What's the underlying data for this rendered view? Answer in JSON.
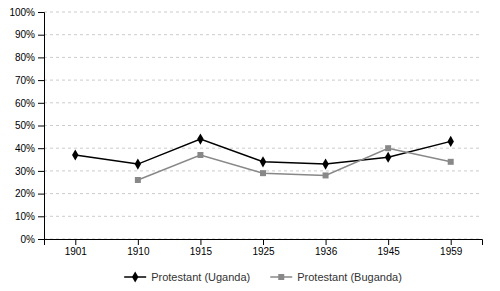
{
  "chart_data": {
    "type": "line",
    "categories": [
      "1901",
      "1910",
      "1915",
      "1925",
      "1936",
      "1945",
      "1959"
    ],
    "series": [
      {
        "name": "Protestant (Uganda)",
        "color": "#000000",
        "marker": "diamond",
        "values": [
          0.37,
          0.33,
          0.44,
          0.34,
          0.33,
          0.36,
          0.43
        ]
      },
      {
        "name": "Protestant (Buganda)",
        "color": "#888888",
        "marker": "square",
        "values": [
          null,
          0.26,
          0.37,
          0.29,
          0.28,
          0.4,
          0.34
        ]
      }
    ],
    "ylim": [
      0.0,
      1.0
    ],
    "yticks": [
      {
        "value": 0.0,
        "label": "0%"
      },
      {
        "value": 0.1,
        "label": "10%"
      },
      {
        "value": 0.2,
        "label": "20%"
      },
      {
        "value": 0.3,
        "label": "30%"
      },
      {
        "value": 0.4,
        "label": "40%"
      },
      {
        "value": 0.5,
        "label": "50%"
      },
      {
        "value": 0.6,
        "label": "60%"
      },
      {
        "value": 0.7,
        "label": "70%"
      },
      {
        "value": 0.8,
        "label": "80%"
      },
      {
        "value": 0.9,
        "label": "90%"
      },
      {
        "value": 1.0,
        "label": "100%"
      }
    ],
    "grid": true,
    "legend": "bottom"
  }
}
